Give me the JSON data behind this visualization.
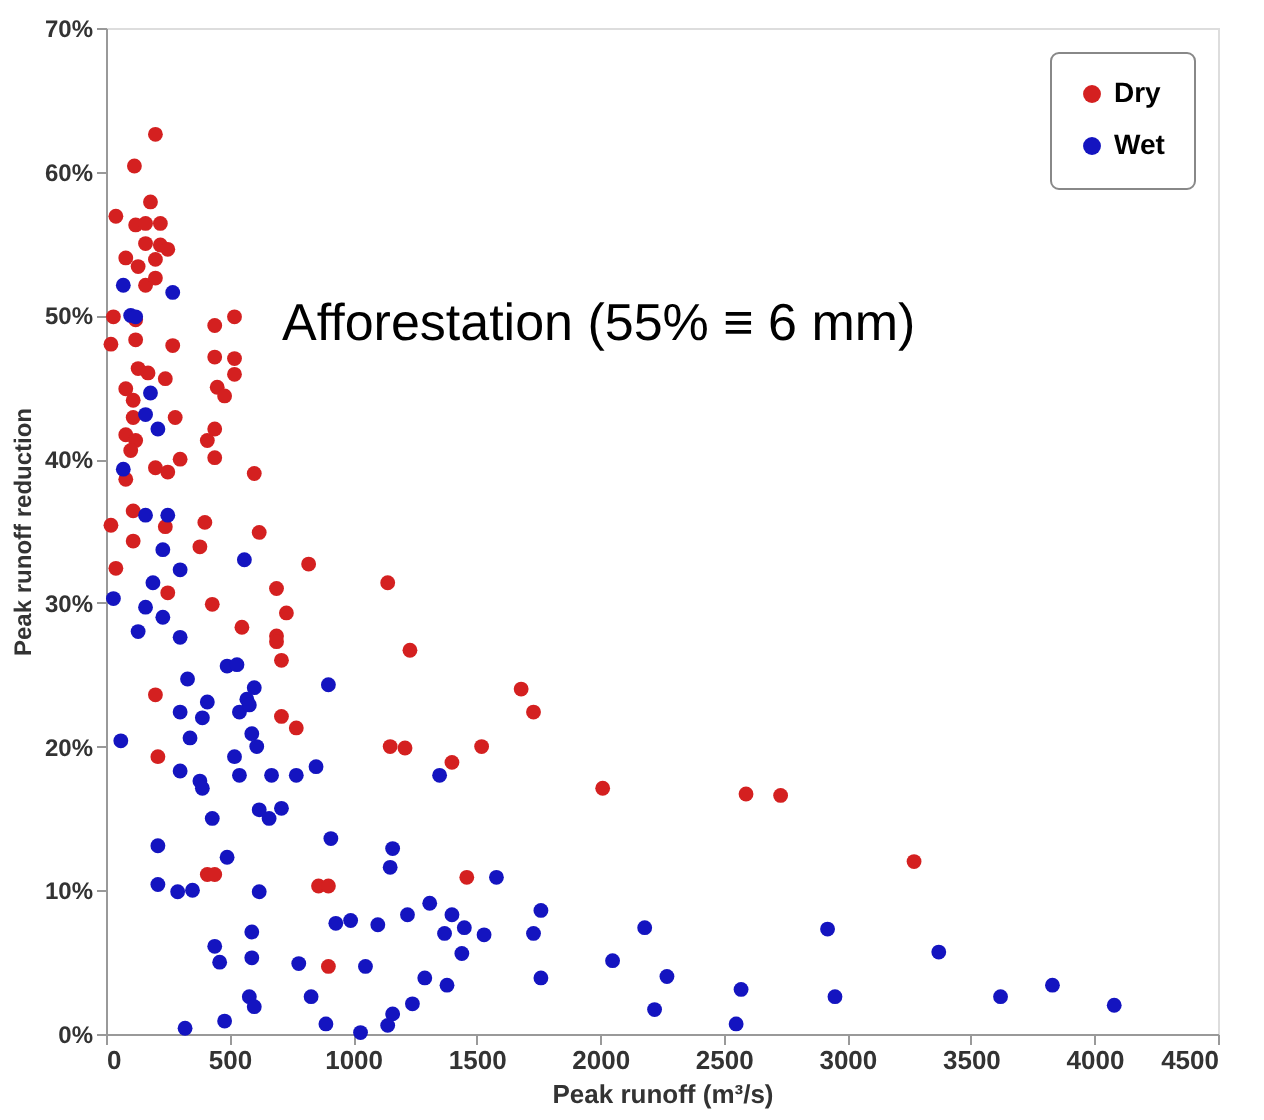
{
  "chart_data": {
    "type": "scatter",
    "xlabel": "Peak runoff (m³/s)",
    "ylabel": "Peak runoff reduction",
    "annotations": [
      "Afforestation (55% ≡ 6 mm)"
    ],
    "xlim": [
      0,
      4500
    ],
    "xticks": [
      0,
      500,
      1000,
      1500,
      2000,
      2500,
      3000,
      3500,
      4000,
      4500
    ],
    "ylim": [
      0,
      70
    ],
    "yticks": [
      {
        "value": 0,
        "label": "0%"
      },
      {
        "value": 10,
        "label": "10%"
      },
      {
        "value": 20,
        "label": "20%"
      },
      {
        "value": 30,
        "label": "30%"
      },
      {
        "value": 40,
        "label": "40%"
      },
      {
        "value": 50,
        "label": "50%"
      },
      {
        "value": 60,
        "label": "60%"
      },
      {
        "value": 70,
        "label": "70%"
      }
    ],
    "grid": false,
    "legend": "top right",
    "marker": "circle",
    "series": [
      {
        "name": "Dry",
        "color": "#d42020",
        "x": [
          200,
          115,
          180,
          40,
          120,
          160,
          220,
          160,
          220,
          250,
          80,
          130,
          200,
          160,
          200,
          30,
          120,
          440,
          520,
          20,
          120,
          270,
          440,
          520,
          520,
          130,
          170,
          240,
          450,
          480,
          80,
          110,
          280,
          110,
          80,
          120,
          100,
          440,
          410,
          440,
          200,
          250,
          300,
          80,
          600,
          110,
          20,
          110,
          240,
          400,
          620,
          380,
          40,
          250,
          430,
          690,
          730,
          550,
          690,
          690,
          710,
          820,
          1140,
          1230,
          200,
          710,
          770,
          210,
          1150,
          1210,
          1400,
          1520,
          410,
          440,
          860,
          900,
          1460,
          900,
          1680,
          1730,
          2010,
          2590,
          2730,
          3270
        ],
        "values": [
          62.6,
          60.4,
          57.9,
          56.9,
          56.3,
          56.4,
          56.4,
          55.0,
          54.9,
          54.6,
          54.0,
          53.4,
          53.9,
          52.1,
          52.6,
          49.9,
          49.7,
          49.3,
          49.9,
          48.0,
          48.3,
          47.9,
          47.1,
          47.0,
          45.9,
          46.3,
          46.0,
          45.6,
          45.0,
          44.4,
          44.9,
          44.1,
          42.9,
          42.9,
          41.7,
          41.3,
          40.6,
          42.1,
          41.3,
          40.1,
          39.4,
          39.1,
          40.0,
          38.6,
          39.0,
          36.4,
          35.4,
          34.3,
          35.3,
          35.6,
          34.9,
          33.9,
          32.4,
          30.7,
          29.9,
          31.0,
          29.3,
          28.3,
          27.7,
          27.3,
          26.0,
          32.7,
          31.4,
          26.7,
          23.6,
          22.1,
          21.3,
          19.3,
          20.0,
          19.9,
          18.9,
          20.0,
          11.1,
          11.1,
          10.3,
          10.3,
          10.9,
          4.7,
          24.0,
          22.4,
          17.1,
          16.7,
          16.6,
          12.0
        ]
      },
      {
        "name": "Wet",
        "color": "#1414c0",
        "x": [
          70,
          270,
          100,
          120,
          180,
          160,
          210,
          70,
          160,
          250,
          230,
          300,
          560,
          190,
          30,
          160,
          230,
          130,
          300,
          490,
          530,
          600,
          900,
          330,
          410,
          300,
          390,
          570,
          540,
          580,
          340,
          60,
          590,
          610,
          520,
          300,
          540,
          670,
          770,
          850,
          1350,
          380,
          390,
          620,
          660,
          710,
          430,
          910,
          210,
          1160,
          1150,
          490,
          210,
          290,
          350,
          620,
          930,
          990,
          1100,
          1220,
          1310,
          1400,
          1450,
          1370,
          1530,
          1440,
          440,
          460,
          590,
          590,
          780,
          1050,
          1290,
          1380,
          1240,
          1160,
          1140,
          1030,
          890,
          830,
          580,
          600,
          480,
          320,
          1580,
          1760,
          1730,
          1760,
          2050,
          2180,
          2270,
          2220,
          2570,
          2550,
          2920,
          2950,
          3370,
          3620,
          3830,
          4080
        ],
        "values": [
          52.1,
          51.6,
          50.0,
          49.9,
          44.6,
          43.1,
          42.1,
          39.3,
          36.1,
          36.1,
          33.7,
          32.3,
          33.0,
          31.4,
          30.3,
          29.7,
          29.0,
          28.0,
          27.6,
          25.6,
          25.7,
          24.1,
          24.3,
          24.7,
          23.1,
          22.4,
          22.0,
          23.3,
          22.4,
          22.9,
          20.6,
          20.4,
          20.9,
          20.0,
          19.3,
          18.3,
          18.0,
          18.0,
          18.0,
          18.6,
          18.0,
          17.6,
          17.1,
          15.6,
          15.0,
          15.7,
          15.0,
          13.6,
          13.1,
          12.9,
          11.6,
          12.3,
          10.4,
          9.9,
          10.0,
          9.9,
          7.7,
          7.9,
          7.6,
          8.3,
          9.1,
          8.3,
          7.4,
          7.0,
          6.9,
          5.6,
          6.1,
          5.0,
          7.1,
          5.3,
          4.9,
          4.7,
          3.9,
          3.4,
          2.1,
          1.4,
          0.6,
          0.1,
          0.7,
          2.6,
          2.6,
          1.9,
          0.9,
          0.4,
          10.9,
          8.6,
          7.0,
          3.9,
          5.1,
          7.4,
          4.0,
          1.7,
          3.1,
          0.7,
          7.3,
          2.6,
          5.7,
          2.6,
          3.4,
          2.0
        ]
      }
    ]
  }
}
